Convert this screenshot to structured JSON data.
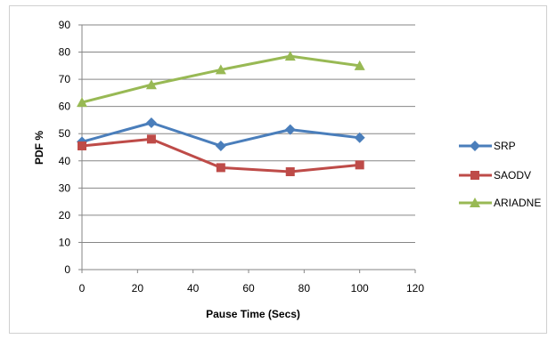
{
  "chart_data": {
    "type": "line",
    "title": "",
    "xlabel": "Pause Time (Secs)",
    "ylabel": "PDF %",
    "xlim": [
      0,
      120
    ],
    "ylim": [
      0,
      90
    ],
    "x_ticks": [
      "0",
      "20",
      "40",
      "60",
      "80",
      "100",
      "120"
    ],
    "y_ticks": [
      "0",
      "10",
      "20",
      "30",
      "40",
      "50",
      "60",
      "70",
      "80",
      "90"
    ],
    "grid": true,
    "legend_position": "right",
    "x": [
      0,
      25,
      50,
      75,
      100
    ],
    "series": [
      {
        "name": "SRP",
        "values": [
          47,
          54,
          45.5,
          51.5,
          48.5
        ],
        "color": "#4a7ebb",
        "marker": "diamond"
      },
      {
        "name": "SAODV",
        "values": [
          45.5,
          48,
          37.5,
          36,
          38.5
        ],
        "color": "#be4b48",
        "marker": "square"
      },
      {
        "name": "ARIADNE",
        "values": [
          61.5,
          68,
          73.5,
          78.5,
          75
        ],
        "color": "#98b954",
        "marker": "triangle"
      }
    ]
  }
}
